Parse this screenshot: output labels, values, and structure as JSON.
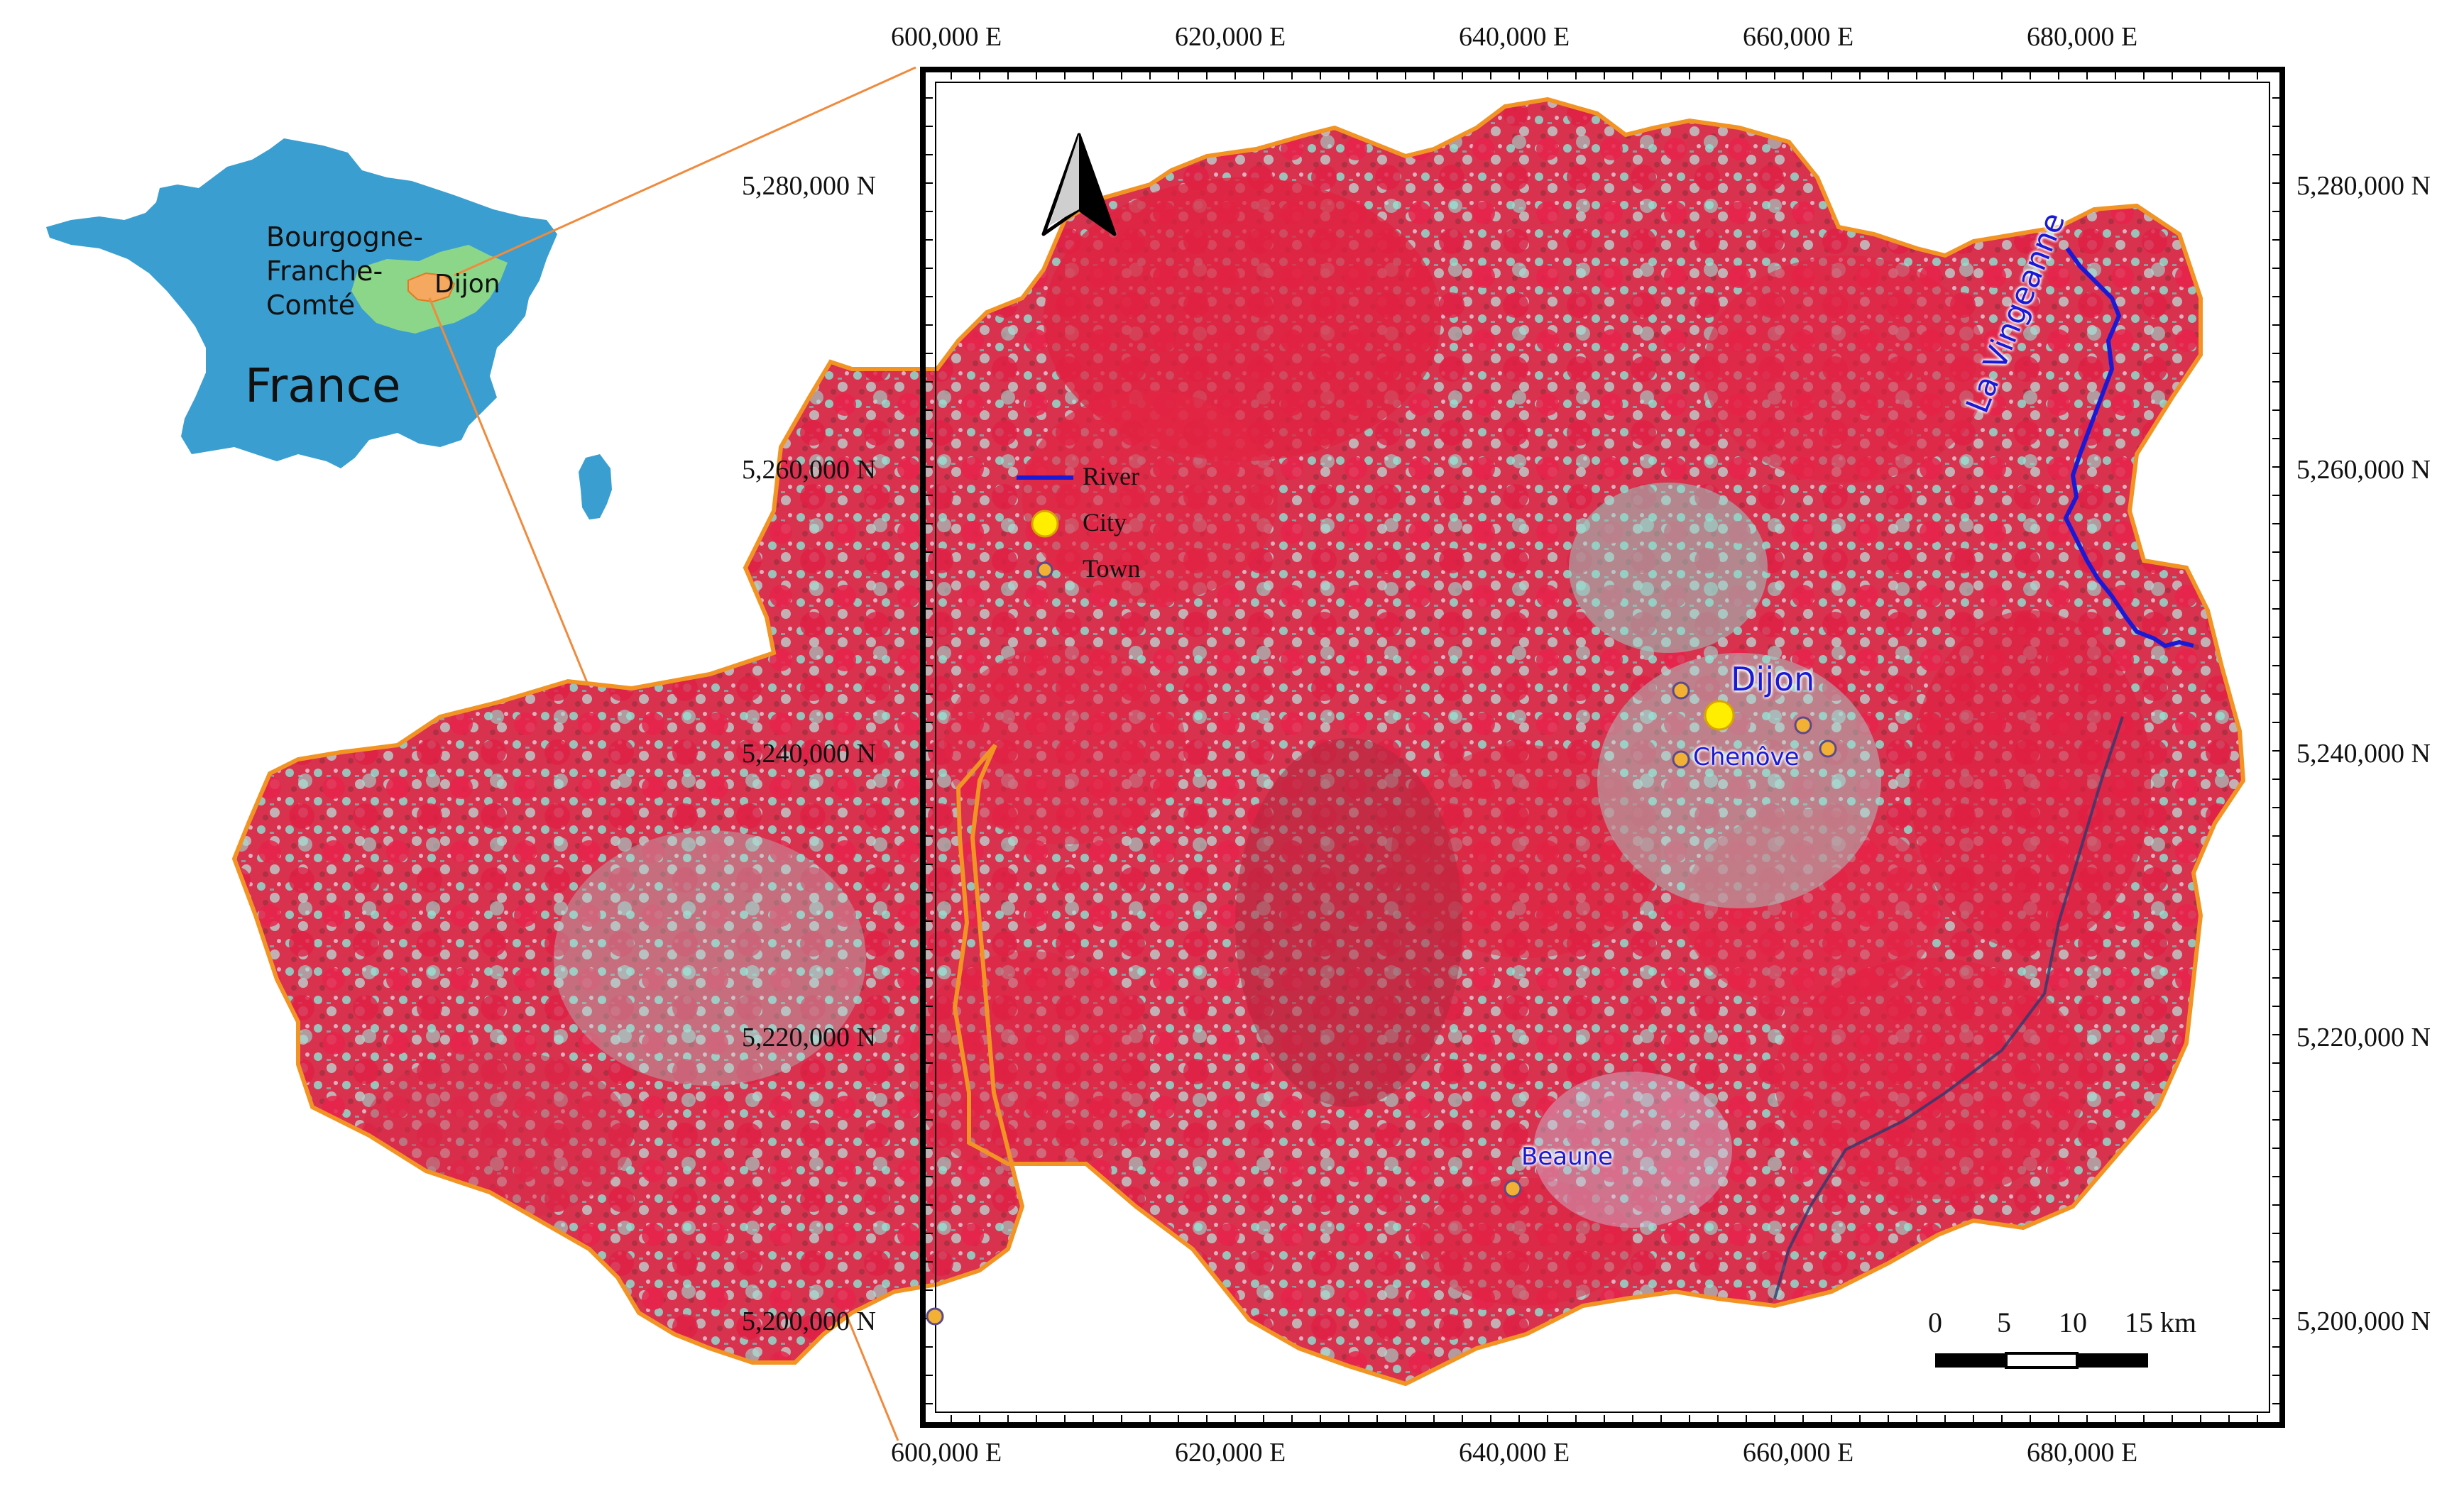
{
  "inset": {
    "country_label": "France",
    "region_label": [
      "Bourgogne-",
      "Franche-",
      "Comté"
    ],
    "city_label": "Dijon",
    "colors": {
      "country": "#3a9fd0",
      "region": "#8cd68a",
      "study_area": "#f4a860",
      "leader_lines": "#f08a3c"
    }
  },
  "map": {
    "x_axis_ticks": [
      "600,000 E",
      "620,000 E",
      "640,000 E",
      "660,000 E",
      "680,000 E"
    ],
    "y_axis_ticks": [
      "5,280,000 N",
      "5,260,000 N",
      "5,240,000 N",
      "5,220,000 N",
      "5,200,000 N"
    ],
    "north_arrow_icon": "north-arrow-icon",
    "legend": [
      {
        "symbol": "line",
        "label": "River",
        "color": "#1a1ad6"
      },
      {
        "symbol": "large-circle",
        "label": "City",
        "color": "#ffee00"
      },
      {
        "symbol": "small-circle",
        "label": "Town",
        "color": "#f2b134"
      }
    ],
    "places": {
      "city": "Dijon",
      "towns": [
        "Chenôve",
        "Beaune"
      ],
      "river": "La Vingeanne"
    },
    "scale_bar": {
      "ticks": [
        "0",
        "5",
        "10",
        "15 km"
      ]
    },
    "colors": {
      "vegetation": "#e0233f",
      "fields": "#7fd8c8",
      "boundary": "#f29424",
      "river": "#1a1ad6",
      "frame": "#000000"
    }
  }
}
